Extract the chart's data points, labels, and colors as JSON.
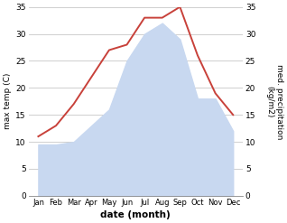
{
  "months": [
    "Jan",
    "Feb",
    "Mar",
    "Apr",
    "May",
    "Jun",
    "Jul",
    "Aug",
    "Sep",
    "Oct",
    "Nov",
    "Dec"
  ],
  "temp": [
    11,
    13,
    17,
    22,
    27,
    28,
    33,
    33,
    35,
    26,
    19,
    15
  ],
  "precip": [
    9.5,
    9.5,
    10,
    13,
    16,
    25,
    30,
    32,
    29,
    18,
    18,
    12
  ],
  "temp_color": "#c8413a",
  "precip_fill_color": "#c8d8f0",
  "ylim": [
    0,
    35
  ],
  "yticks": [
    0,
    5,
    10,
    15,
    20,
    25,
    30,
    35
  ],
  "xlabel": "date (month)",
  "ylabel_left": "max temp (C)",
  "ylabel_right": "med. precipitation\n(kg/m2)",
  "background_color": "#ffffff",
  "grid_color": "#c8c8c8",
  "figsize": [
    3.18,
    2.47
  ],
  "dpi": 100
}
